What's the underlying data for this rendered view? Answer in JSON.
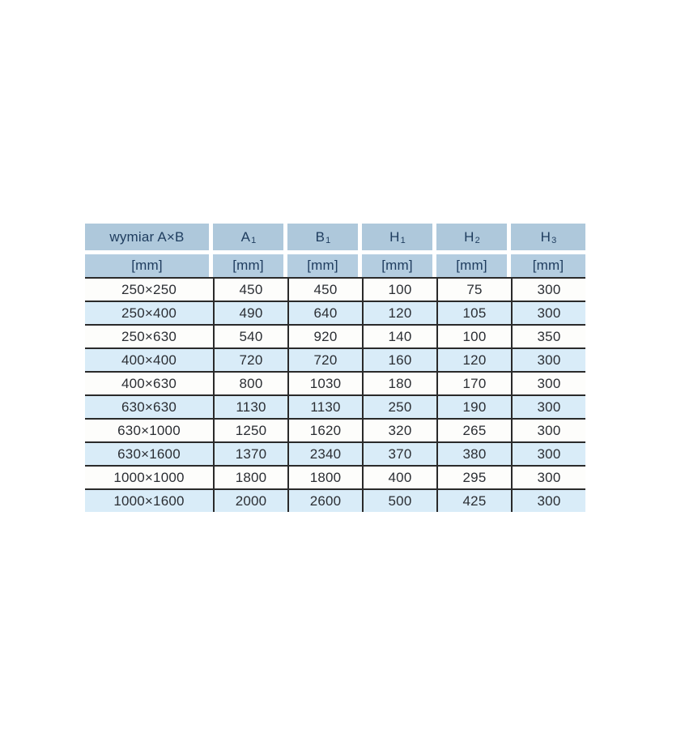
{
  "table": {
    "header": {
      "dim_label": "wymiar A×B",
      "cols": [
        {
          "main": "A",
          "sub": "1"
        },
        {
          "main": "B",
          "sub": "1"
        },
        {
          "main": "H",
          "sub": "1"
        },
        {
          "main": "H",
          "sub": "2"
        },
        {
          "main": "H",
          "sub": "3"
        }
      ],
      "unit": "[mm]"
    },
    "rows": [
      {
        "dim": "250×250",
        "a1": "450",
        "b1": "450",
        "h1": "100",
        "h2": "75",
        "h3": "300"
      },
      {
        "dim": "250×400",
        "a1": "490",
        "b1": "640",
        "h1": "120",
        "h2": "105",
        "h3": "300"
      },
      {
        "dim": "250×630",
        "a1": "540",
        "b1": "920",
        "h1": "140",
        "h2": "100",
        "h3": "350"
      },
      {
        "dim": "400×400",
        "a1": "720",
        "b1": "720",
        "h1": "160",
        "h2": "120",
        "h3": "300"
      },
      {
        "dim": "400×630",
        "a1": "800",
        "b1": "1030",
        "h1": "180",
        "h2": "170",
        "h3": "300"
      },
      {
        "dim": "630×630",
        "a1": "1130",
        "b1": "1130",
        "h1": "250",
        "h2": "190",
        "h3": "300"
      },
      {
        "dim": "630×1000",
        "a1": "1250",
        "b1": "1620",
        "h1": "320",
        "h2": "265",
        "h3": "300"
      },
      {
        "dim": "630×1600",
        "a1": "1370",
        "b1": "2340",
        "h1": "370",
        "h2": "380",
        "h3": "300"
      },
      {
        "dim": "1000×1000",
        "a1": "1800",
        "b1": "1800",
        "h1": "400",
        "h2": "295",
        "h3": "300"
      },
      {
        "dim": "1000×1600",
        "a1": "2000",
        "b1": "2600",
        "h1": "500",
        "h2": "425",
        "h3": "300"
      }
    ]
  },
  "colors": {
    "header_bg": "#aec8db",
    "unit_bg": "#b4cde0",
    "row_even_bg": "#d9ecf8",
    "row_odd_bg": "#fdfdfb",
    "grid_line": "#2a2a2a",
    "header_text": "#1e3c5e",
    "data_text": "#2b2e33"
  }
}
